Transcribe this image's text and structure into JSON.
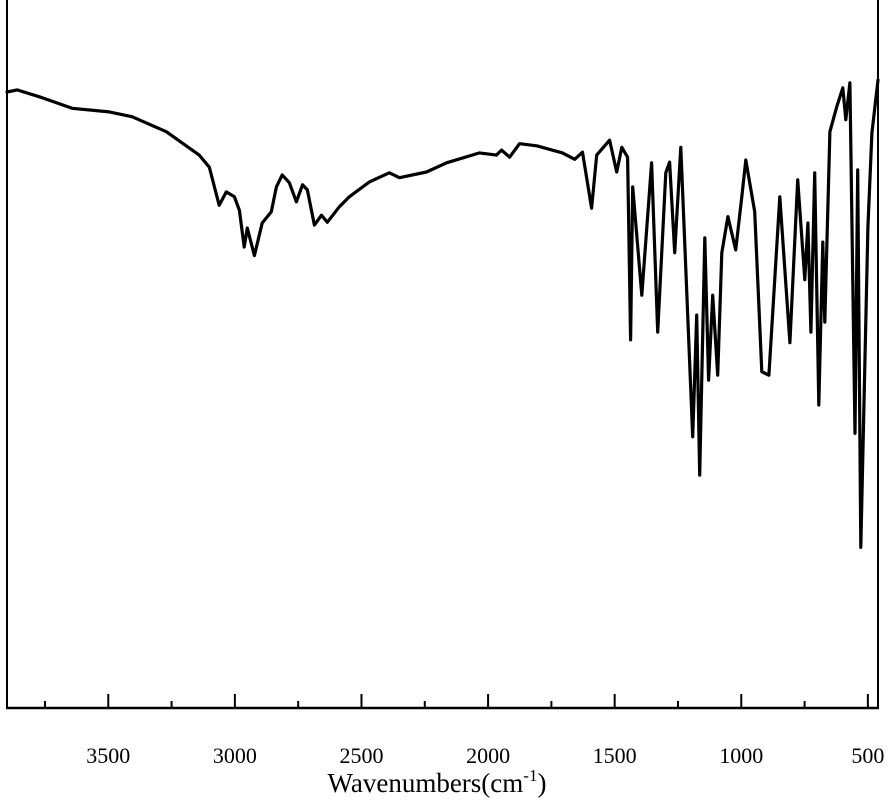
{
  "chart_data": {
    "type": "line",
    "title": "",
    "xlabel": {
      "text": "Wavenumbers(cm",
      "superscript": "-1",
      "suffix": ")"
    },
    "ylabel": "",
    "xlim": [
      3900,
      460
    ],
    "ylim": [
      0,
      100
    ],
    "x_reversed": true,
    "y_axis_labels_shown": false,
    "grid": false,
    "line_color": "#000000",
    "x_ticks": [
      3500,
      3000,
      2500,
      2000,
      1500,
      1000,
      500
    ],
    "x_tick_labels": [
      "3500",
      "3000",
      "2500",
      "2000",
      "1500",
      "1000",
      "500"
    ],
    "x_minor_ticks": [
      3750,
      3250,
      2750,
      2250,
      1750,
      1250,
      750
    ],
    "series": [
      {
        "x": [
          3900,
          3860,
          3761,
          3643,
          3496,
          3405,
          3271,
          3141,
          3101,
          3062,
          3034,
          3002,
          2982,
          2963,
          2951,
          2923,
          2892,
          2856,
          2836,
          2813,
          2785,
          2757,
          2733,
          2714,
          2686,
          2658,
          2635,
          2587,
          2548,
          2469,
          2390,
          2350,
          2243,
          2164,
          2034,
          1967,
          1947,
          1915,
          1876,
          1808,
          1706,
          1658,
          1627,
          1591,
          1571,
          1520,
          1492,
          1472,
          1449,
          1437,
          1429,
          1393,
          1354,
          1330,
          1298,
          1283,
          1263,
          1239,
          1192,
          1176,
          1164,
          1144,
          1129,
          1113,
          1093,
          1077,
          1053,
          1022,
          998,
          982,
          947,
          919,
          891,
          848,
          808,
          777,
          749,
          737,
          725,
          710,
          694,
          678,
          670,
          650,
          623,
          599,
          587,
          571,
          551,
          540,
          528,
          500,
          484,
          460
        ],
        "y": [
          87.0,
          87.3,
          86.2,
          84.7,
          84.2,
          83.5,
          81.4,
          78.1,
          76.4,
          71.0,
          72.9,
          72.2,
          70.3,
          65.1,
          67.8,
          63.9,
          68.5,
          70.1,
          73.6,
          75.3,
          74.2,
          71.5,
          73.9,
          73.2,
          68.2,
          69.6,
          68.6,
          70.8,
          72.2,
          74.3,
          75.6,
          74.9,
          75.7,
          77.0,
          78.4,
          78.1,
          78.8,
          77.8,
          79.7,
          79.4,
          78.4,
          77.5,
          78.5,
          70.6,
          78.1,
          80.2,
          75.7,
          79.2,
          77.8,
          52.0,
          73.6,
          58.3,
          77.0,
          53.1,
          75.6,
          77.1,
          64.3,
          79.2,
          38.3,
          55.5,
          32.9,
          66.4,
          46.3,
          58.3,
          47.0,
          64.3,
          69.4,
          64.7,
          72.2,
          77.4,
          70.1,
          47.5,
          47.0,
          72.2,
          51.6,
          74.6,
          60.5,
          68.5,
          53.1,
          75.6,
          42.8,
          65.8,
          54.5,
          81.4,
          84.9,
          87.6,
          83.1,
          88.3,
          38.8,
          76.0,
          22.7,
          67.9,
          81.2,
          88.7
        ]
      }
    ]
  }
}
